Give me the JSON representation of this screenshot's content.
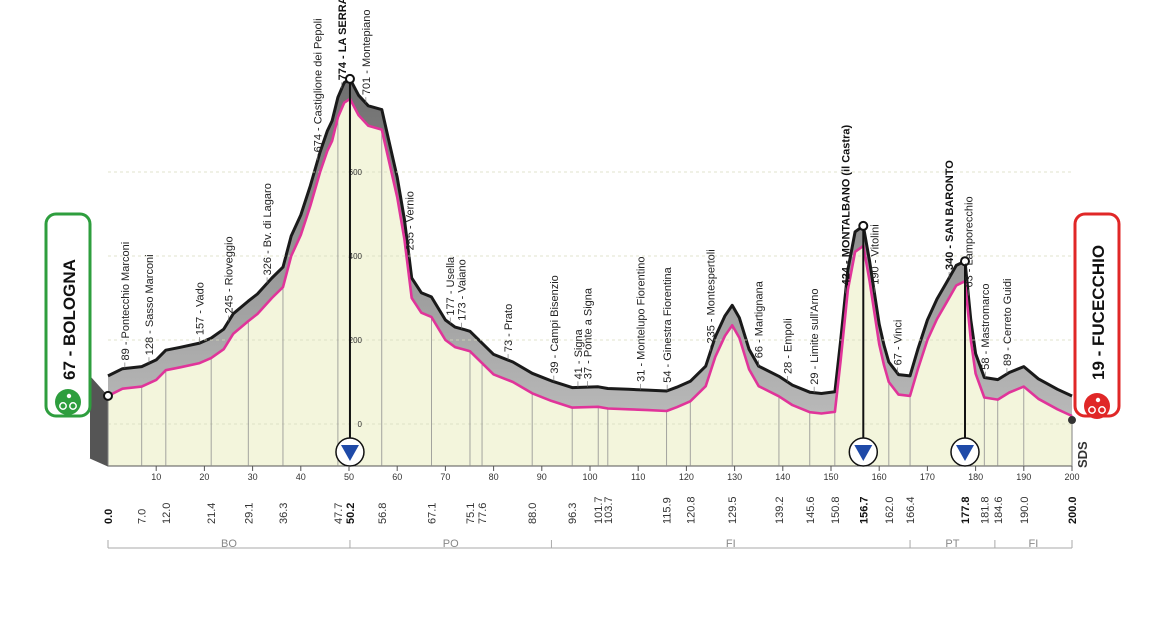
{
  "chart_data": {
    "type": "area",
    "x_unit": "km",
    "xlim": [
      0,
      200
    ],
    "profile": [
      [
        0,
        67
      ],
      [
        3,
        84
      ],
      [
        7,
        89
      ],
      [
        10,
        105
      ],
      [
        12,
        128
      ],
      [
        15,
        135
      ],
      [
        19,
        145
      ],
      [
        21.4,
        157
      ],
      [
        24,
        178
      ],
      [
        26,
        215
      ],
      [
        29.1,
        245
      ],
      [
        31,
        262
      ],
      [
        34,
        300
      ],
      [
        36.3,
        326
      ],
      [
        38,
        400
      ],
      [
        40,
        450
      ],
      [
        42,
        520
      ],
      [
        44,
        600
      ],
      [
        45.5,
        650
      ],
      [
        46.5,
        674
      ],
      [
        47.7,
        730
      ],
      [
        49,
        765
      ],
      [
        50.2,
        774
      ],
      [
        52,
        735
      ],
      [
        54,
        710
      ],
      [
        56.8,
        701
      ],
      [
        58,
        640
      ],
      [
        60,
        540
      ],
      [
        61.5,
        440
      ],
      [
        63,
        300
      ],
      [
        65,
        265
      ],
      [
        67.1,
        255
      ],
      [
        70,
        200
      ],
      [
        72,
        183
      ],
      [
        74,
        177
      ],
      [
        75.1,
        173
      ],
      [
        77.6,
        145
      ],
      [
        80,
        118
      ],
      [
        84,
        100
      ],
      [
        88,
        73
      ],
      [
        92,
        55
      ],
      [
        96.3,
        39
      ],
      [
        101.7,
        41
      ],
      [
        103.7,
        37
      ],
      [
        108,
        35
      ],
      [
        112,
        33
      ],
      [
        115.9,
        31
      ],
      [
        118,
        40
      ],
      [
        120.8,
        54
      ],
      [
        124,
        90
      ],
      [
        126,
        160
      ],
      [
        128,
        210
      ],
      [
        129.5,
        235
      ],
      [
        131,
        205
      ],
      [
        133,
        130
      ],
      [
        135,
        90
      ],
      [
        139.2,
        66
      ],
      [
        142,
        45
      ],
      [
        145.6,
        28
      ],
      [
        148,
        25
      ],
      [
        150.8,
        29
      ],
      [
        152,
        150
      ],
      [
        153.5,
        320
      ],
      [
        155,
        410
      ],
      [
        156.7,
        424
      ],
      [
        158,
        340
      ],
      [
        160,
        190
      ],
      [
        161,
        140
      ],
      [
        162,
        100
      ],
      [
        164,
        70
      ],
      [
        166.4,
        67
      ],
      [
        168,
        130
      ],
      [
        170,
        200
      ],
      [
        172,
        250
      ],
      [
        174,
        290
      ],
      [
        176,
        330
      ],
      [
        177.8,
        340
      ],
      [
        179,
        200
      ],
      [
        180,
        120
      ],
      [
        181.8,
        63
      ],
      [
        184.6,
        58
      ],
      [
        187,
        75
      ],
      [
        190,
        89
      ],
      [
        193,
        60
      ],
      [
        197,
        35
      ],
      [
        200,
        19
      ]
    ],
    "km_labels": [
      {
        "km": 0,
        "label": "0.0",
        "bold": true
      },
      {
        "km": 7,
        "label": "7.0"
      },
      {
        "km": 12,
        "label": "12.0"
      },
      {
        "km": 21.4,
        "label": "21.4"
      },
      {
        "km": 29.1,
        "label": "29.1"
      },
      {
        "km": 36.3,
        "label": "36.3"
      },
      {
        "km": 47.7,
        "label": "47.7"
      },
      {
        "km": 50.2,
        "label": "50.2",
        "bold": true
      },
      {
        "km": 56.8,
        "label": "56.8"
      },
      {
        "km": 67.1,
        "label": "67.1"
      },
      {
        "km": 75.1,
        "label": "75.1"
      },
      {
        "km": 77.6,
        "label": "77.6"
      },
      {
        "km": 88,
        "label": "88.0"
      },
      {
        "km": 96.3,
        "label": "96.3"
      },
      {
        "km": 101.7,
        "label": "101.7"
      },
      {
        "km": 103.7,
        "label": "103.7"
      },
      {
        "km": 115.9,
        "label": "115.9"
      },
      {
        "km": 120.8,
        "label": "120.8"
      },
      {
        "km": 129.5,
        "label": "129.5"
      },
      {
        "km": 139.2,
        "label": "139.2"
      },
      {
        "km": 145.6,
        "label": "145.6"
      },
      {
        "km": 150.8,
        "label": "150.8"
      },
      {
        "km": 156.7,
        "label": "156.7",
        "bold": true
      },
      {
        "km": 162,
        "label": "162.0"
      },
      {
        "km": 166.4,
        "label": "166.4"
      },
      {
        "km": 177.8,
        "label": "177.8",
        "bold": true
      },
      {
        "km": 181.8,
        "label": "181.8"
      },
      {
        "km": 184.6,
        "label": "184.6"
      },
      {
        "km": 190,
        "label": "190.0"
      },
      {
        "km": 200,
        "label": "200.0",
        "bold": true
      }
    ],
    "town_labels": [
      {
        "km": 3.5,
        "label": "89 - Pontecchio Marconi"
      },
      {
        "km": 8.5,
        "label": "128 - Sasso Marconi"
      },
      {
        "km": 19,
        "label": "157 - Vado"
      },
      {
        "km": 25,
        "label": "245 - Rioveggio"
      },
      {
        "km": 33,
        "label": "326 - Bv. di Lagaro"
      },
      {
        "km": 43.5,
        "label": "674 - Castiglione dei Pepoli"
      },
      {
        "km": 48.5,
        "label": "774 - LA SERRA",
        "bold": true
      },
      {
        "km": 53.5,
        "label": "701 - Montepiano"
      },
      {
        "km": 62.5,
        "label": "255 - Vernio"
      },
      {
        "km": 71,
        "label": "177 - Usella"
      },
      {
        "km": 73.3,
        "label": "173 - Vaiano"
      },
      {
        "km": 83,
        "label": "73 - Prato"
      },
      {
        "km": 92.5,
        "label": "39 - Campi Bisenzio"
      },
      {
        "km": 97.5,
        "label": "41 - Signa"
      },
      {
        "km": 99.5,
        "label": "37 - Ponte a Signa"
      },
      {
        "km": 110.5,
        "label": "31 - Montelupo Fiorentino"
      },
      {
        "km": 116,
        "label": "54 - Ginestra Fiorentina"
      },
      {
        "km": 125,
        "label": "235 - Montespertoli"
      },
      {
        "km": 135,
        "label": "66 - Martignana"
      },
      {
        "km": 141,
        "label": "28 - Empoli"
      },
      {
        "km": 146.5,
        "label": "29 - Limite sull'Arno"
      },
      {
        "km": 153,
        "label": "424 - MONTALBANO (il Castra)",
        "bold": true
      },
      {
        "km": 159,
        "label": "190 - Vitolini"
      },
      {
        "km": 163.8,
        "label": "67 - Vinci"
      },
      {
        "km": 174.5,
        "label": "340 - SAN BARONTO",
        "bold": true
      },
      {
        "km": 178.5,
        "label": "63 - Lamporecchio"
      },
      {
        "km": 182,
        "label": "58 - Mastromarco"
      },
      {
        "km": 186.5,
        "label": "89 - Cerreto Guidi"
      }
    ],
    "climbs_km": [
      50.2,
      156.7,
      177.8
    ],
    "start": {
      "name": "67 - BOLOGNA",
      "altitude": 67,
      "km": 0
    },
    "finish": {
      "name": "19 - FUCECCHIO",
      "altitude": 19,
      "km": 200
    },
    "altitude_ticks": [
      0,
      200,
      400,
      600
    ],
    "distance_ticks": [
      10,
      20,
      30,
      40,
      50,
      60,
      70,
      80,
      90,
      100,
      110,
      120,
      130,
      140,
      150,
      160,
      170,
      180,
      190,
      200
    ],
    "regions": [
      {
        "name": "BO",
        "from": 0,
        "to": 50.2
      },
      {
        "name": "PO",
        "from": 50.2,
        "to": 92
      },
      {
        "name": "FI",
        "from": 92,
        "to": 166.4
      },
      {
        "name": "PT",
        "from": 166.4,
        "to": 184
      },
      {
        "name": "FI",
        "from": 184,
        "to": 200
      }
    ],
    "brand": "SDS",
    "colors": {
      "route": "#e0349a",
      "fill": "#f3f5dc",
      "relief": "#9a9a9a",
      "start": "#2e9e3e",
      "finish": "#e02727",
      "climb": "#1f4aa8"
    }
  }
}
